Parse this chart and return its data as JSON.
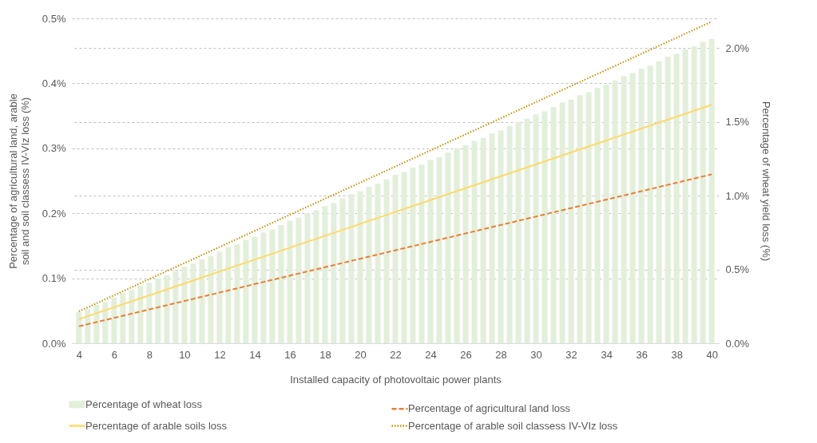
{
  "chart_data": {
    "type": "bar",
    "xlabel": "Installed capacity of photovoltaic power plants",
    "ylabel": "Percentage of agricultural land, arable soil and soil classess IV-VIz loss (%)",
    "y2label": "Percentage of wheat yield loss (%)",
    "xlim": [
      3.6,
      40.4
    ],
    "xticks": [
      4,
      6,
      8,
      10,
      12,
      14,
      16,
      18,
      20,
      22,
      24,
      26,
      28,
      30,
      32,
      34,
      36,
      38,
      40
    ],
    "ylim": [
      0,
      0.5
    ],
    "yticks": [
      {
        "value": 0,
        "label": "0.0%"
      },
      {
        "value": 0.1,
        "label": "0.1%"
      },
      {
        "value": 0.2,
        "label": "0.2%"
      },
      {
        "value": 0.3,
        "label": "0.3%"
      },
      {
        "value": 0.4,
        "label": "0.4%"
      },
      {
        "value": 0.5,
        "label": "0.5%"
      }
    ],
    "y2lim": [
      0,
      2.2
    ],
    "y2ticks": [
      {
        "value": 0,
        "label": "0.0%"
      },
      {
        "value": 0.5,
        "label": "0.5%"
      },
      {
        "value": 1,
        "label": "1.0%"
      },
      {
        "value": 1.5,
        "label": "1.5%"
      },
      {
        "value": 2,
        "label": "2.0%"
      }
    ],
    "grid": "y",
    "legend": "bottom",
    "series": [
      {
        "name": "Percentage of wheat loss",
        "axis": "y2",
        "color": "#e2efda",
        "x": [
          4,
          4.5,
          5,
          5.5,
          6,
          6.5,
          7,
          7.5,
          8,
          8.5,
          9,
          9.5,
          10,
          10.5,
          11,
          11.5,
          12,
          12.5,
          13,
          13.5,
          14,
          14.5,
          15,
          15.5,
          16,
          16.5,
          17,
          17.5,
          18,
          18.5,
          19,
          19.5,
          20,
          20.5,
          21,
          21.5,
          22,
          22.5,
          23,
          23.5,
          24,
          24.5,
          25,
          25.5,
          26,
          26.5,
          27,
          27.5,
          28,
          28.5,
          29,
          29.5,
          30,
          30.5,
          31,
          31.5,
          32,
          32.5,
          33,
          33.5,
          34,
          34.5,
          35,
          35.5,
          36,
          36.5,
          37,
          37.5,
          38,
          38.5,
          39,
          39.5,
          40
        ],
        "values": [
          0.21,
          0.23,
          0.26,
          0.28,
          0.31,
          0.34,
          0.36,
          0.39,
          0.41,
          0.44,
          0.46,
          0.49,
          0.52,
          0.54,
          0.57,
          0.59,
          0.62,
          0.65,
          0.67,
          0.7,
          0.72,
          0.75,
          0.77,
          0.8,
          0.83,
          0.85,
          0.88,
          0.9,
          0.93,
          0.95,
          0.98,
          1.01,
          1.03,
          1.06,
          1.08,
          1.11,
          1.14,
          1.16,
          1.19,
          1.21,
          1.24,
          1.26,
          1.29,
          1.32,
          1.34,
          1.37,
          1.39,
          1.42,
          1.44,
          1.47,
          1.5,
          1.52,
          1.55,
          1.57,
          1.6,
          1.63,
          1.65,
          1.68,
          1.7,
          1.73,
          1.75,
          1.78,
          1.81,
          1.83,
          1.86,
          1.88,
          1.91,
          1.94,
          1.96,
          1.99,
          2.01,
          2.04,
          2.06
        ]
      },
      {
        "name": "Percentage of agricultural land loss",
        "type": "line",
        "line_style": "dashed",
        "color": "#ed7d31",
        "x": [
          4,
          40
        ],
        "values": [
          0.026,
          0.26
        ]
      },
      {
        "name": "Percentage of arable soils loss",
        "type": "line",
        "line_style": "solid",
        "color": "#ffd966",
        "x": [
          4,
          40
        ],
        "values": [
          0.037,
          0.367
        ]
      },
      {
        "name": "Percentage of arable soil classess IV-VIz loss",
        "type": "line",
        "line_style": "dotted",
        "color": "#bf9000",
        "x": [
          4,
          40
        ],
        "values": [
          0.049,
          0.495
        ]
      }
    ]
  }
}
